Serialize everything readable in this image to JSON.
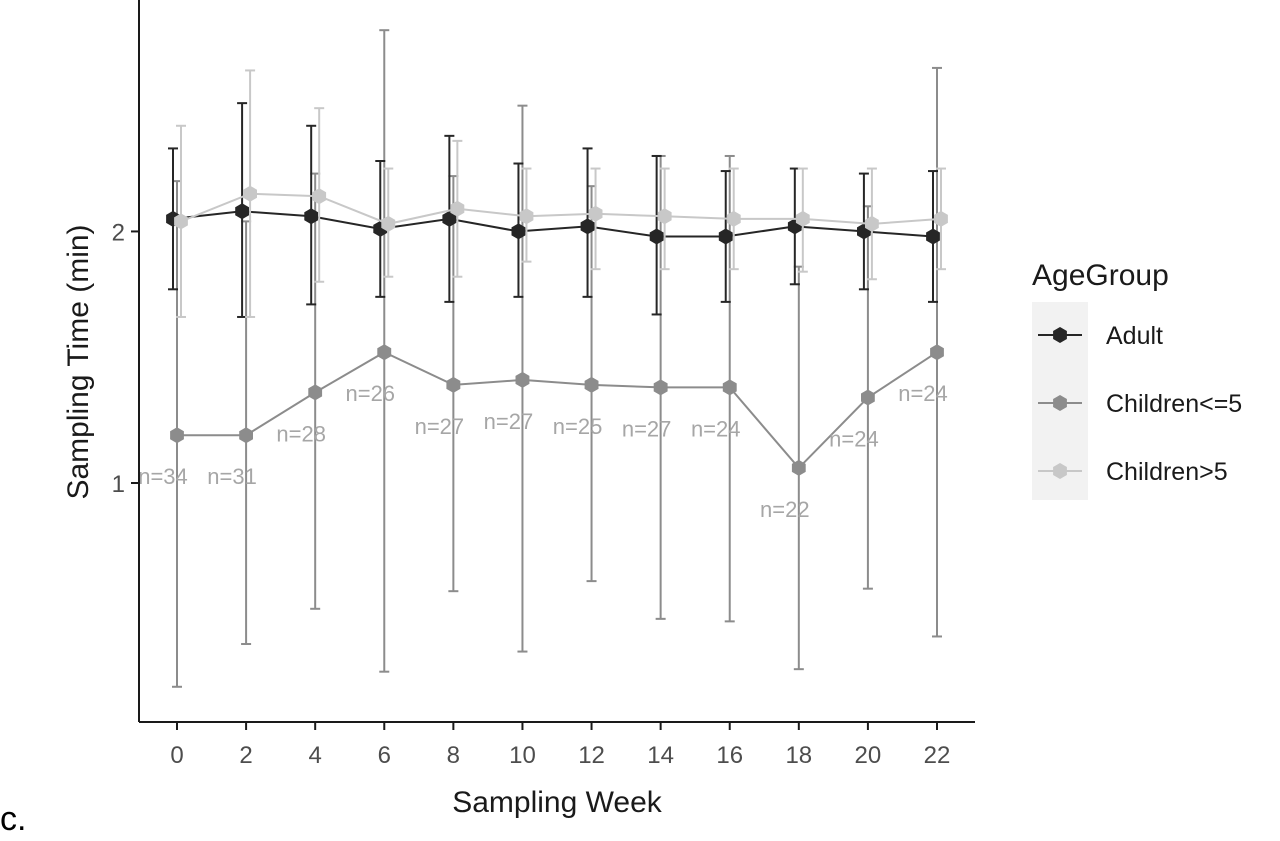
{
  "panel_label": "c.",
  "chart_data": {
    "type": "line",
    "xlabel": "Sampling Week",
    "ylabel": "Sampling Time (min)",
    "x": [
      0,
      2,
      4,
      6,
      8,
      10,
      12,
      14,
      16,
      18,
      20,
      22
    ],
    "x_ticks": [
      "0",
      "2",
      "4",
      "6",
      "8",
      "10",
      "12",
      "14",
      "16",
      "18",
      "20",
      "22"
    ],
    "y_ticks": [
      "1",
      "2"
    ],
    "xlim": [
      -1.1,
      23.1
    ],
    "ylim": [
      0.05,
      2.92
    ],
    "grid": false,
    "legend": {
      "title": "AgeGroup",
      "position": "right"
    },
    "series": [
      {
        "name": "Adult",
        "color": "#262626",
        "values": [
          2.05,
          2.08,
          2.06,
          2.01,
          2.05,
          2.0,
          2.02,
          1.98,
          1.98,
          2.02,
          2.0,
          1.98
        ],
        "err_low": [
          1.77,
          1.66,
          1.71,
          1.74,
          1.72,
          1.74,
          1.74,
          1.67,
          1.72,
          1.79,
          1.77,
          1.72
        ],
        "err_high": [
          2.33,
          2.51,
          2.42,
          2.28,
          2.38,
          2.27,
          2.33,
          2.3,
          2.24,
          2.25,
          2.23,
          2.24
        ]
      },
      {
        "name": "Children<=5",
        "color": "#8c8c8c",
        "values": [
          1.19,
          1.19,
          1.36,
          1.52,
          1.39,
          1.41,
          1.39,
          1.38,
          1.38,
          1.06,
          1.34,
          1.52
        ],
        "err_low": [
          0.19,
          0.36,
          0.5,
          0.25,
          0.57,
          0.33,
          0.61,
          0.46,
          0.45,
          0.26,
          0.58,
          0.39
        ],
        "err_high": [
          2.2,
          2.04,
          2.23,
          2.8,
          2.22,
          2.5,
          2.18,
          2.3,
          2.3,
          1.86,
          2.1,
          2.65
        ]
      },
      {
        "name": "Children>5",
        "color": "#c8c8c8",
        "values": [
          2.04,
          2.15,
          2.14,
          2.03,
          2.09,
          2.06,
          2.07,
          2.06,
          2.05,
          2.05,
          2.03,
          2.05
        ],
        "err_low": [
          1.66,
          1.66,
          1.8,
          1.82,
          1.82,
          1.88,
          1.85,
          1.85,
          1.85,
          1.84,
          1.81,
          1.85
        ],
        "err_high": [
          2.42,
          2.64,
          2.49,
          2.25,
          2.36,
          2.25,
          2.25,
          2.25,
          2.25,
          2.25,
          2.25,
          2.25
        ]
      }
    ],
    "annotations": [
      {
        "text": "n=34",
        "x": 0,
        "y": 1.19,
        "place": "below"
      },
      {
        "text": "n=31",
        "x": 2,
        "y": 1.19,
        "place": "below"
      },
      {
        "text": "n=28",
        "x": 4,
        "y": 1.36,
        "place": "below"
      },
      {
        "text": "n=26",
        "x": 6,
        "y": 1.52,
        "place": "below"
      },
      {
        "text": "n=27",
        "x": 8,
        "y": 1.39,
        "place": "below"
      },
      {
        "text": "n=27",
        "x": 10,
        "y": 1.41,
        "place": "below"
      },
      {
        "text": "n=25",
        "x": 12,
        "y": 1.39,
        "place": "below"
      },
      {
        "text": "n=27",
        "x": 14,
        "y": 1.38,
        "place": "below"
      },
      {
        "text": "n=24",
        "x": 16,
        "y": 1.38,
        "place": "below"
      },
      {
        "text": "n=22",
        "x": 18,
        "y": 1.06,
        "place": "below"
      },
      {
        "text": "n=24",
        "x": 20,
        "y": 1.34,
        "place": "below"
      },
      {
        "text": "n=24",
        "x": 22,
        "y": 1.52,
        "place": "below"
      }
    ],
    "annotation_color": "#a6a6a6"
  }
}
